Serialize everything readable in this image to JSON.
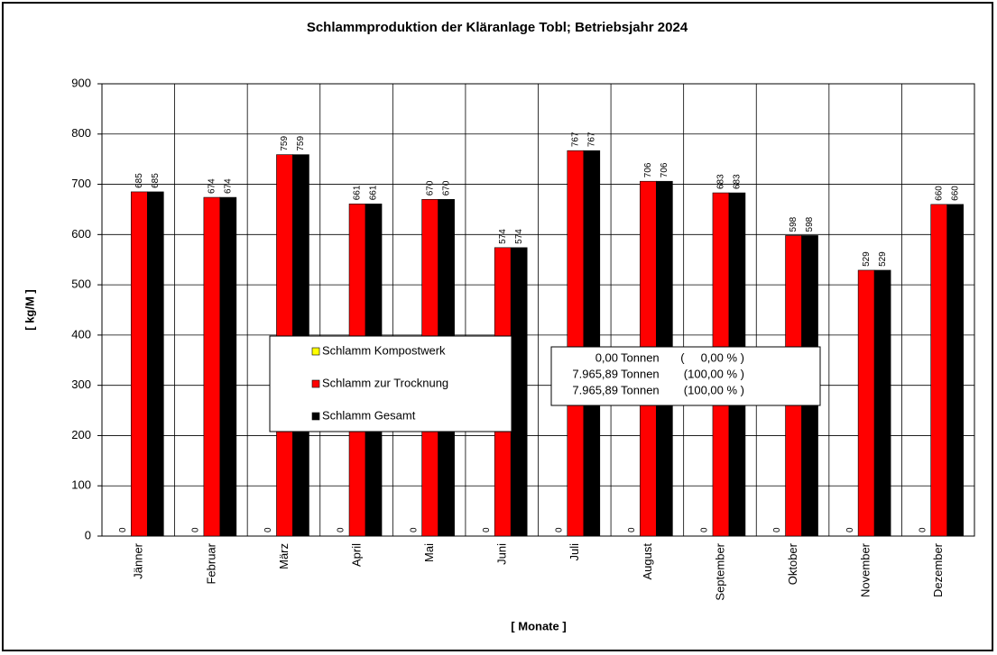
{
  "chart_data": {
    "type": "bar",
    "title": "Schlammproduktion der Kläranlage Tobl; Betriebsjahr 2024",
    "y_label": "[ kg/M ]",
    "x_label": "[ Monate ]",
    "categories": [
      "Jänner",
      "Februar",
      "März",
      "April",
      "Mai",
      "Juni",
      "Juli",
      "August",
      "September",
      "Oktober",
      "November",
      "Dezember"
    ],
    "series": [
      {
        "name": "Schlamm Kompostwerk",
        "color": "#ffff00",
        "values": [
          0,
          0,
          0,
          0,
          0,
          0,
          0,
          0,
          0,
          0,
          0,
          0
        ]
      },
      {
        "name": "Schlamm zur Trocknung",
        "color": "#ff0000",
        "values": [
          685,
          674,
          759,
          661,
          670,
          574,
          767,
          706,
          683,
          598,
          529,
          660
        ]
      },
      {
        "name": "Schlamm Gesamt",
        "color": "#000000",
        "values": [
          685,
          674,
          759,
          661,
          670,
          574,
          767,
          706,
          683,
          598,
          529,
          660
        ]
      }
    ],
    "ylim": [
      0,
      900
    ],
    "yticks": [
      0,
      100,
      200,
      300,
      400,
      500,
      600,
      700,
      800,
      900
    ],
    "grid": true,
    "summary": {
      "rows": [
        [
          "0,00",
          "Tonnen",
          "(     0,00 % )"
        ],
        [
          "7.965,89",
          "Tonnen",
          "(100,00 % )"
        ],
        [
          "7.965,89",
          "Tonnen",
          "(100,00 % )"
        ]
      ]
    }
  }
}
